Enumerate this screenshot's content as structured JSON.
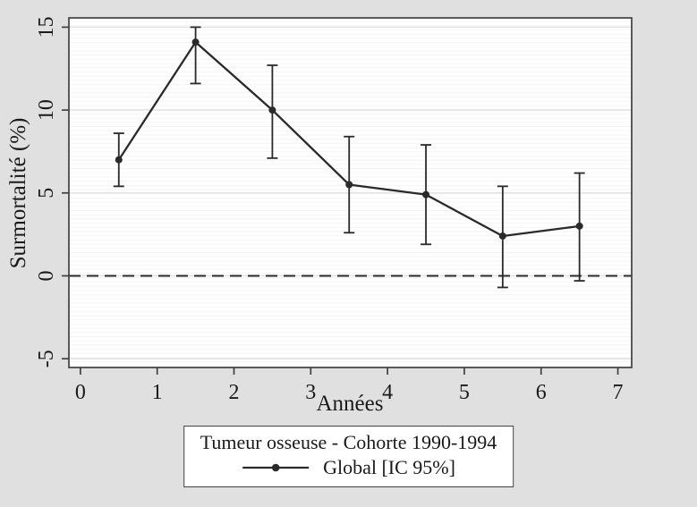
{
  "colors": {
    "background": "#e0e0e0",
    "plot_background": "#ffffff",
    "plot_stripe": "#f4f4f4",
    "grid": "#dfdfdf",
    "axis": "#404040",
    "series": "#2a2a2a",
    "text": "#1a1a1a"
  },
  "chart_data": {
    "type": "line",
    "title": "",
    "xlabel": "Années",
    "ylabel": "Surmortalité (%)",
    "x": [
      0.5,
      1.5,
      2.5,
      3.5,
      4.5,
      5.5,
      6.5
    ],
    "series": [
      {
        "name": "Global [IC 95%]",
        "values": [
          7.0,
          14.1,
          10.0,
          5.5,
          4.9,
          2.4,
          3.0
        ],
        "ci_low": [
          5.4,
          11.6,
          7.1,
          2.6,
          1.9,
          -0.7,
          -0.3
        ],
        "ci_high": [
          8.6,
          15.0,
          12.7,
          8.4,
          7.9,
          5.4,
          6.2
        ]
      }
    ],
    "xticks": [
      0,
      1,
      2,
      3,
      4,
      5,
      6,
      7
    ],
    "yticks": [
      -5,
      0,
      5,
      10,
      15
    ],
    "xlim": [
      -0.15,
      7.18
    ],
    "ylim": [
      -5.53,
      15.56
    ],
    "refline": {
      "y": 0,
      "style": "dashed"
    },
    "grid": true,
    "legend": {
      "position": "bottom",
      "title": "Tumeur osseuse - Cohorte 1990-1994",
      "entries": [
        {
          "label": "Global [IC 95%]",
          "marker": "circle-line"
        }
      ]
    }
  }
}
